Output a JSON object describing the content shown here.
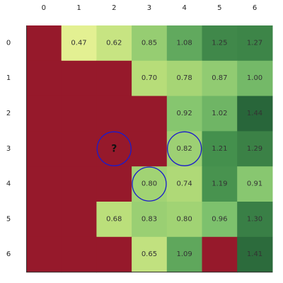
{
  "chart_data": {
    "type": "heatmap",
    "x_ticks": [
      "0",
      "1",
      "2",
      "3",
      "4",
      "5",
      "6"
    ],
    "y_ticks": [
      "0",
      "1",
      "2",
      "3",
      "4",
      "5",
      "6"
    ],
    "values": [
      [
        null,
        0.47,
        0.62,
        0.85,
        1.08,
        1.25,
        1.27
      ],
      [
        null,
        null,
        null,
        0.7,
        0.78,
        0.87,
        1.0
      ],
      [
        null,
        null,
        null,
        null,
        0.92,
        1.02,
        1.44
      ],
      [
        null,
        null,
        "?",
        null,
        0.82,
        1.21,
        1.29
      ],
      [
        null,
        null,
        null,
        0.8,
        0.74,
        1.19,
        0.91
      ],
      [
        null,
        null,
        0.68,
        0.83,
        0.8,
        0.96,
        1.3
      ],
      [
        null,
        null,
        null,
        0.65,
        1.09,
        null,
        1.41
      ]
    ],
    "masked_color": "#96192b",
    "unknown_label": "?",
    "highlighted_cells": [
      {
        "row": 3,
        "col": 2
      },
      {
        "row": 3,
        "col": 4
      },
      {
        "row": 4,
        "col": 3
      }
    ],
    "highlight_color": "#1a1acc",
    "colormap": "light yellow-green to dark green (value 0.47 to 1.44)",
    "value_range": [
      0.47,
      1.44
    ],
    "grid": false
  }
}
